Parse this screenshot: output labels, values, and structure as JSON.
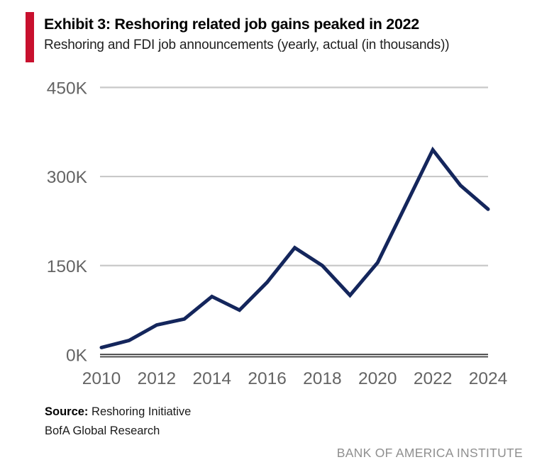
{
  "header": {
    "exhibit_title": "Exhibit 3: Reshoring related job gains peaked in 2022",
    "subtitle": "Reshoring and FDI job announcements (yearly, actual (in thousands))"
  },
  "chart_data": {
    "type": "line",
    "title": "Reshoring and FDI job announcements (yearly, actual (in thousands))",
    "x": [
      2010,
      2011,
      2012,
      2013,
      2014,
      2015,
      2016,
      2017,
      2018,
      2019,
      2020,
      2021,
      2022,
      2023,
      2024
    ],
    "series": [
      {
        "name": "Reshoring and FDI job announcements (thousands)",
        "values": [
          12,
          24,
          50,
          60,
          98,
          75,
          122,
          180,
          150,
          100,
          155,
          250,
          345,
          285,
          245
        ]
      }
    ],
    "x_tick_labels": [
      "2010",
      "2012",
      "2014",
      "2016",
      "2018",
      "2020",
      "2022",
      "2024"
    ],
    "y_ticks": [
      450,
      300,
      150,
      0
    ],
    "y_tick_labels": [
      "450K",
      "300K",
      "150K",
      "0K"
    ],
    "ylim": [
      0,
      450
    ],
    "grid": "horizontal",
    "legend": "none",
    "annotations": []
  },
  "source": {
    "label": "Source:",
    "text": "Reshoring Initiative",
    "line2": "BofA Global Research"
  },
  "footer": {
    "brand": "BANK OF AMERICA INSTITUTE"
  },
  "colors": {
    "accent_bar_red": "#C8102E",
    "line_navy": "#14265C",
    "gridline_gray": "#C9C9C9",
    "axis_dark": "#404040",
    "tick_text_gray": "#646464",
    "footer_gray": "#8F8F8F",
    "background": "#FFFFFF"
  }
}
